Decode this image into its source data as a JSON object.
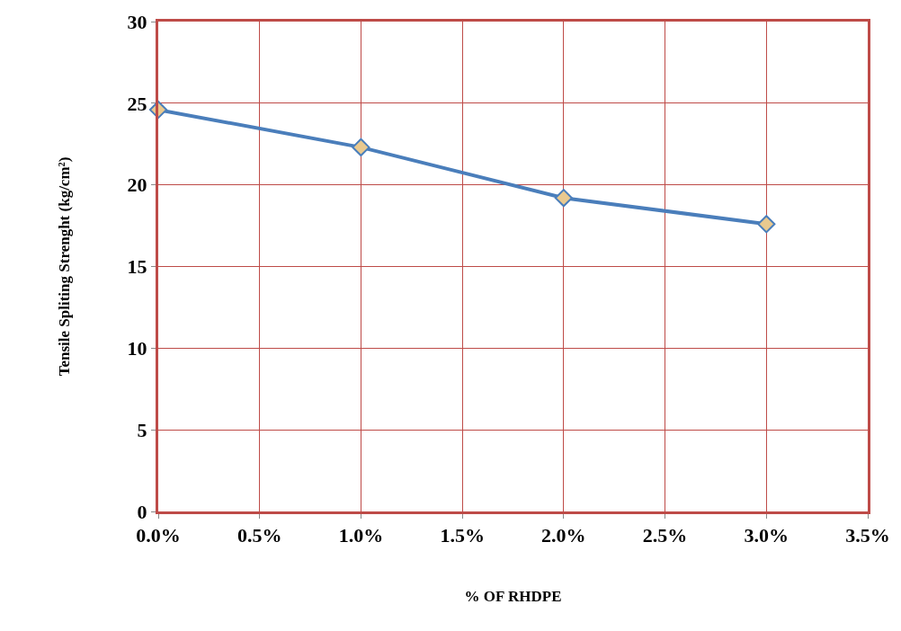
{
  "chart_data": {
    "type": "line",
    "xlabel": "% OF RHDPE",
    "ylabel": "Tensile Spliting Strenght (kg/cm²)",
    "x": [
      0,
      0.01,
      0.02,
      0.03
    ],
    "series": [
      {
        "color": "#4a7ebb",
        "values": [
          24.6,
          22.3,
          19.2,
          17.6
        ]
      }
    ],
    "xlim": [
      0,
      0.035
    ],
    "xticks": [
      {
        "value": 0,
        "label": "0.0%"
      },
      {
        "value": 0.005,
        "label": "0.5%"
      },
      {
        "value": 0.01,
        "label": "1.0%"
      },
      {
        "value": 0.015,
        "label": "1.5%"
      },
      {
        "value": 0.02,
        "label": "2.0%"
      },
      {
        "value": 0.025,
        "label": "2.5%"
      },
      {
        "value": 0.03,
        "label": "3.0%"
      },
      {
        "value": 0.035,
        "label": "3.5%"
      }
    ],
    "ylim": [
      0,
      30
    ],
    "yticks": [
      0,
      5,
      10,
      15,
      20,
      25,
      30
    ],
    "grid": true,
    "marker": "diamond",
    "line_style": "solid"
  }
}
